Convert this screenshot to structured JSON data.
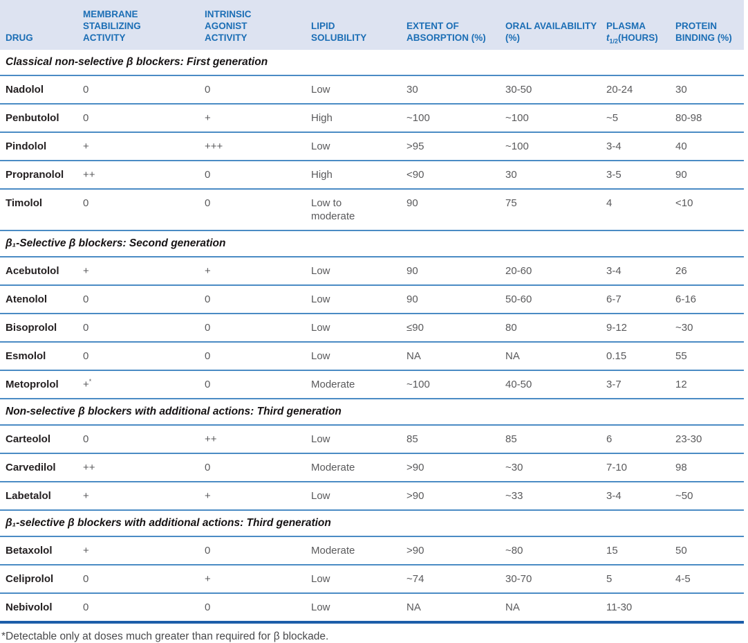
{
  "table": {
    "columns": [
      {
        "key": "drug",
        "label": "DRUG"
      },
      {
        "key": "msa",
        "label": "MEMBRANE STABILIZING ACTIVITY"
      },
      {
        "key": "iaa",
        "label": "INTRINSIC AGONIST ACTIVITY"
      },
      {
        "key": "lipid",
        "label": "LIPID SOLUBILITY"
      },
      {
        "key": "absorption",
        "label": "EXTENT OF ABSORPTION (%)"
      },
      {
        "key": "oral",
        "label": "ORAL AVAILABILITY (%)"
      },
      {
        "key": "plasma",
        "label": {
          "pre": "PLASMA",
          "it": "t",
          "sub": "1/2",
          "post": "(HOURS)"
        }
      },
      {
        "key": "protein",
        "label": "PROTEIN BINDING (%)"
      }
    ],
    "sections": [
      {
        "title": "Classical non-selective β blockers: First generation",
        "rows": [
          {
            "drug": "Nadolol",
            "msa": "0",
            "iaa": "0",
            "lipid": "Low",
            "absorption": "30",
            "oral": "30-50",
            "plasma": "20-24",
            "protein": "30"
          },
          {
            "drug": "Penbutolol",
            "msa": "0",
            "iaa": "+",
            "lipid": "High",
            "absorption": "~100",
            "oral": "~100",
            "plasma": "~5",
            "protein": "80-98"
          },
          {
            "drug": "Pindolol",
            "msa": "+",
            "iaa": "+++",
            "lipid": "Low",
            "absorption": ">95",
            "oral": "~100",
            "plasma": "3-4",
            "protein": "40"
          },
          {
            "drug": "Propranolol",
            "msa": "++",
            "iaa": "0",
            "lipid": "High",
            "absorption": "<90",
            "oral": "30",
            "plasma": "3-5",
            "protein": "90"
          },
          {
            "drug": "Timolol",
            "msa": "0",
            "iaa": "0",
            "lipid": "Low to moderate",
            "absorption": "90",
            "oral": "75",
            "plasma": "4",
            "protein": "<10"
          }
        ]
      },
      {
        "title": "β₁-Selective β blockers: Second generation",
        "rows": [
          {
            "drug": "Acebutolol",
            "msa": "+",
            "iaa": "+",
            "lipid": "Low",
            "absorption": "90",
            "oral": "20-60",
            "plasma": "3-4",
            "protein": "26"
          },
          {
            "drug": "Atenolol",
            "msa": "0",
            "iaa": "0",
            "lipid": "Low",
            "absorption": "90",
            "oral": "50-60",
            "plasma": "6-7",
            "protein": "6-16"
          },
          {
            "drug": "Bisoprolol",
            "msa": "0",
            "iaa": "0",
            "lipid": "Low",
            "absorption": "≤90",
            "oral": "80",
            "plasma": "9-12",
            "protein": "~30"
          },
          {
            "drug": "Esmolol",
            "msa": "0",
            "iaa": "0",
            "lipid": "Low",
            "absorption": "NA",
            "oral": "NA",
            "plasma": "0.15",
            "protein": "55"
          },
          {
            "drug": "Metoprolol",
            "msa": {
              "text": "+",
              "sup": "*"
            },
            "iaa": "0",
            "lipid": "Moderate",
            "absorption": "~100",
            "oral": "40-50",
            "plasma": "3-7",
            "protein": "12"
          }
        ]
      },
      {
        "title": "Non-selective β blockers with additional actions: Third generation",
        "rows": [
          {
            "drug": "Carteolol",
            "msa": "0",
            "iaa": "++",
            "lipid": "Low",
            "absorption": "85",
            "oral": "85",
            "plasma": "6",
            "protein": "23-30"
          },
          {
            "drug": "Carvedilol",
            "msa": "++",
            "iaa": "0",
            "lipid": "Moderate",
            "absorption": ">90",
            "oral": "~30",
            "plasma": "7-10",
            "protein": "98"
          },
          {
            "drug": "Labetalol",
            "msa": "+",
            "iaa": "+",
            "lipid": "Low",
            "absorption": ">90",
            "oral": "~33",
            "plasma": "3-4",
            "protein": "~50"
          }
        ]
      },
      {
        "title": "β₁-selective β blockers with additional actions: Third generation",
        "rows": [
          {
            "drug": "Betaxolol",
            "msa": "+",
            "iaa": "0",
            "lipid": "Moderate",
            "absorption": ">90",
            "oral": "~80",
            "plasma": "15",
            "protein": "50"
          },
          {
            "drug": "Celiprolol",
            "msa": "0",
            "iaa": "+",
            "lipid": "Low",
            "absorption": "~74",
            "oral": "30-70",
            "plasma": "5",
            "protein": "4-5"
          },
          {
            "drug": "Nebivolol",
            "msa": "0",
            "iaa": "0",
            "lipid": "Low",
            "absorption": "NA",
            "oral": "NA",
            "plasma": "11-30",
            "protein": ""
          }
        ]
      }
    ],
    "footnote": "*Detectable only at doses much greater than required for β blockade.",
    "colors": {
      "header_bg": "#dde3f1",
      "header_text": "#1b6eb5",
      "row_divider": "#4a8bc4",
      "bottom_rule": "#1c5da9",
      "drug_text": "#231f20",
      "value_text": "#59595b"
    }
  }
}
